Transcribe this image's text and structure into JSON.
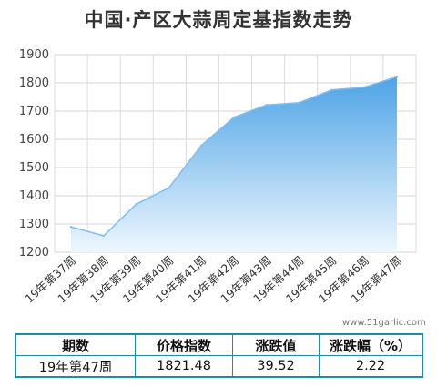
{
  "title": "中国·产区大蒜周定基指数走势",
  "watermark": "www.51garlic.com",
  "colors": {
    "area_top": "#4ea3e6",
    "area_bottom": "#eaf5fd",
    "line": "#7fbfef",
    "table_border": "#1e8ea3"
  },
  "chart_data": {
    "type": "area",
    "categories": [
      "19年第37周",
      "19年第38周",
      "19年第39周",
      "19年第40周",
      "19年第41周",
      "19年第42周",
      "19年第43周",
      "19年第44周",
      "19年第45周",
      "19年第46周",
      "19年第47周"
    ],
    "values": [
      1290,
      1258,
      1370,
      1428,
      1578,
      1678,
      1722,
      1730,
      1775,
      1785,
      1821.48
    ],
    "yticks": [
      1200,
      1300,
      1400,
      1500,
      1600,
      1700,
      1800,
      1900
    ],
    "ylim": [
      1200,
      1900
    ],
    "grid": true
  },
  "table": {
    "headers": [
      "期数",
      "价格指数",
      "涨跌值",
      "涨跌幅（%）"
    ],
    "row": [
      "19年第47周",
      "1821.48",
      "39.52",
      "2.22"
    ]
  }
}
